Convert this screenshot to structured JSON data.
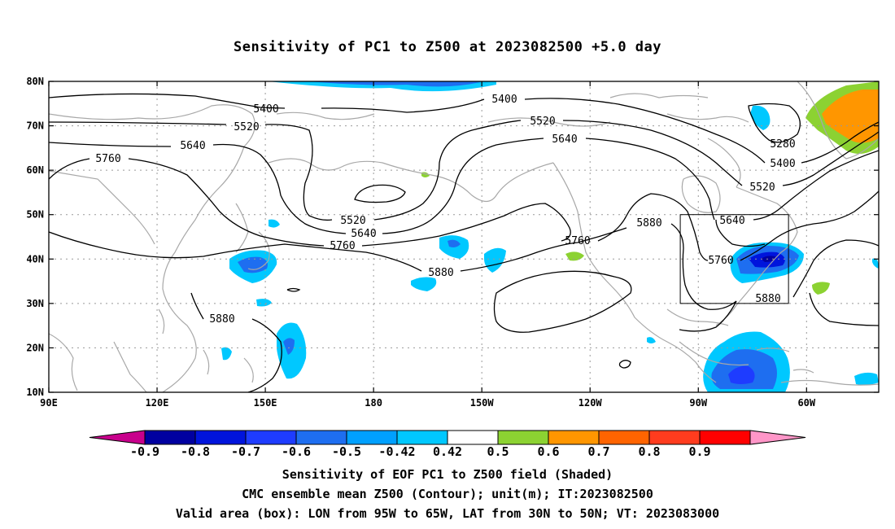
{
  "title": "Sensitivity of PC1 to Z500 at 2023082500 +5.0 day",
  "map": {
    "lon_range": [
      90,
      320
    ],
    "lat_range": [
      10,
      80
    ],
    "lon_ticks": [
      {
        "lon": 90,
        "label": "90E"
      },
      {
        "lon": 120,
        "label": "120E"
      },
      {
        "lon": 150,
        "label": "150E"
      },
      {
        "lon": 180,
        "label": "180"
      },
      {
        "lon": 210,
        "label": "150W"
      },
      {
        "lon": 240,
        "label": "120W"
      },
      {
        "lon": 270,
        "label": "90W"
      },
      {
        "lon": 300,
        "label": "60W"
      }
    ],
    "lat_ticks": [
      {
        "lat": 10,
        "label": "10N"
      },
      {
        "lat": 20,
        "label": "20N"
      },
      {
        "lat": 30,
        "label": "30N"
      },
      {
        "lat": 40,
        "label": "40N"
      },
      {
        "lat": 50,
        "label": "50N"
      },
      {
        "lat": 60,
        "label": "60N"
      },
      {
        "lat": 70,
        "label": "70N"
      },
      {
        "lat": 80,
        "label": "80N"
      }
    ],
    "grid": "dotted",
    "valid_box": {
      "lon_min": 265,
      "lon_max": 295,
      "lat_min": 30,
      "lat_max": 50
    },
    "contour_labels": [
      "5400",
      "5520",
      "5640",
      "5760",
      "5880",
      "5280"
    ]
  },
  "colorbar": {
    "labels": [
      "-0.9",
      "-0.8",
      "-0.7",
      "-0.6",
      "-0.5",
      "-0.42",
      "0.42",
      "0.5",
      "0.6",
      "0.7",
      "0.8",
      "0.9"
    ],
    "colors": [
      "#c8008c",
      "#0000a0",
      "#0014dc",
      "#1e3cff",
      "#1e6ef0",
      "#00a0ff",
      "#00c8ff",
      "#ffffff",
      "#8cd232",
      "#ff9600",
      "#ff6400",
      "#ff3c1e",
      "#ff0000",
      "#ff96c8"
    ]
  },
  "caption": {
    "line1": "Sensitivity of EOF PC1 to Z500 field (Shaded)",
    "line2": "CMC ensemble mean Z500 (Contour); unit(m); IT:2023082500",
    "line3": "Valid area (box): LON from 95W to 65W, LAT from 30N to 50N; VT: 2023083000"
  }
}
